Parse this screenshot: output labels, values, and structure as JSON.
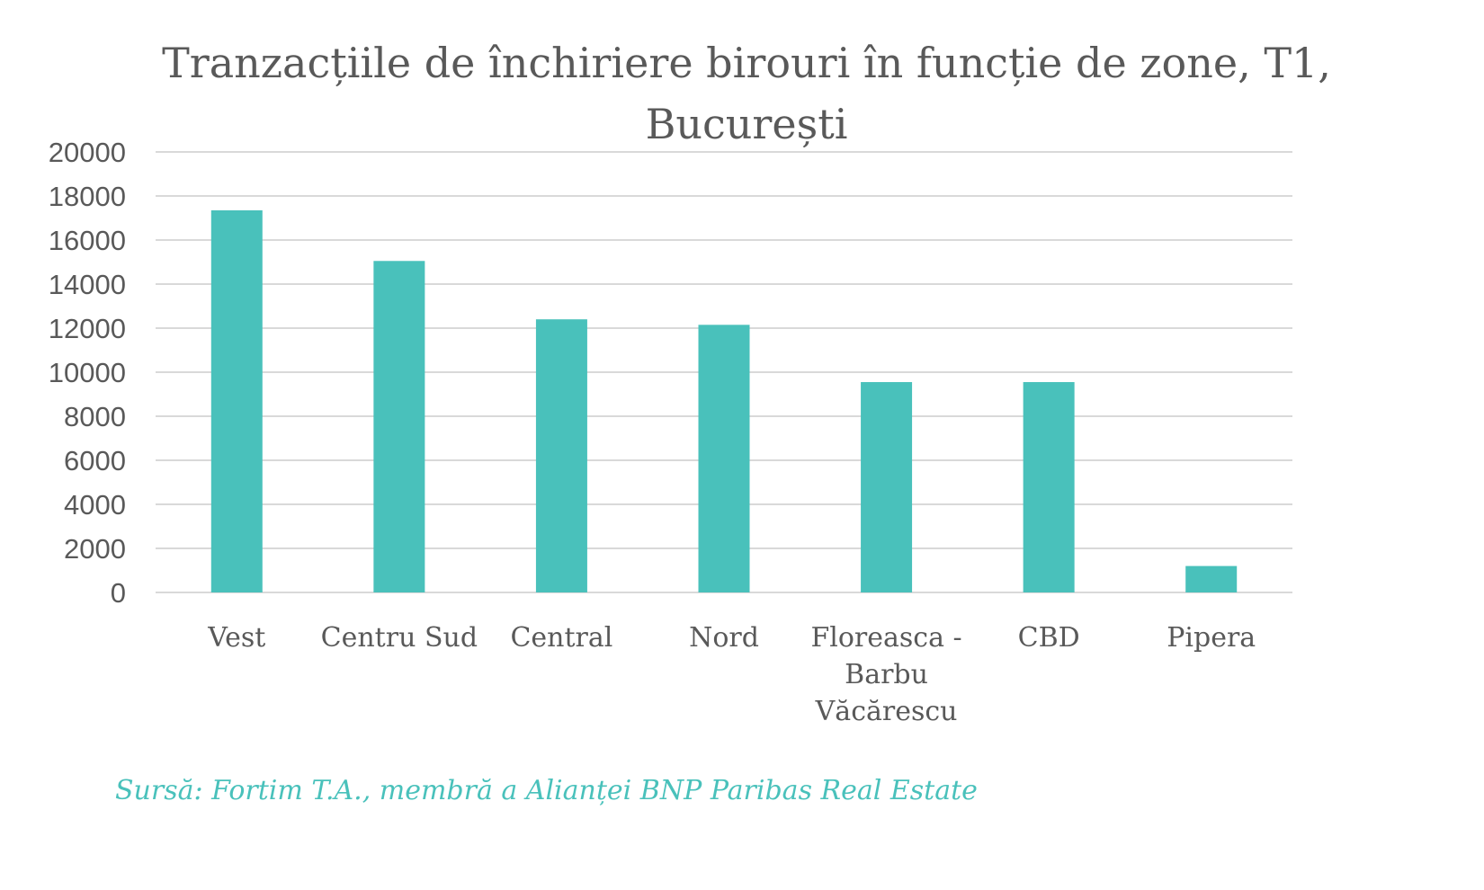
{
  "chart_data": {
    "type": "bar",
    "title": "Tranzacțiile de închiriere birouri în funcție de zone, T1, București",
    "title_lines": [
      "Tranzacțiile de închiriere birouri în funcție de zone, T1,",
      "București"
    ],
    "categories": [
      "Vest",
      "Centru Sud",
      "Central",
      "Nord",
      "Floreasca - Barbu Văcărescu",
      "CBD",
      "Pipera"
    ],
    "category_lines": [
      [
        "Vest"
      ],
      [
        "Centru Sud"
      ],
      [
        "Central"
      ],
      [
        "Nord"
      ],
      [
        "Floreasca -",
        "Barbu",
        "Văcărescu"
      ],
      [
        "CBD"
      ],
      [
        "Pipera"
      ]
    ],
    "values": [
      17350,
      15050,
      12400,
      12150,
      9550,
      9550,
      1200
    ],
    "ylim": [
      0,
      20000
    ],
    "yticks": [
      "0",
      "2000",
      "4000",
      "6000",
      "8000",
      "10000",
      "12000",
      "14000",
      "16000",
      "18000",
      "20000"
    ],
    "xlabel": "",
    "ylabel": "",
    "grid": true,
    "legend": "none",
    "bar_color": "#49c1bb",
    "grid_color": "#d9d9d9"
  },
  "source": "Sursă: Fortim T.A., membră a Alianței BNP Paribas Real Estate"
}
